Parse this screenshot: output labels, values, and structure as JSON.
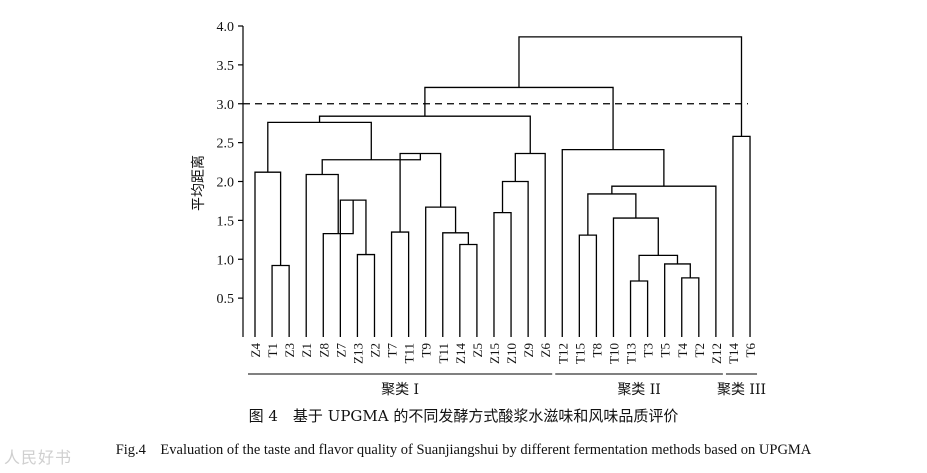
{
  "chart_data": {
    "type": "dendrogram",
    "ylabel": "平均距离",
    "ylim": [
      0,
      4.0
    ],
    "yticks": [
      "4.0",
      "3.5",
      "3.0",
      "2.5",
      "2.0",
      "1.5",
      "1.0",
      "0.5"
    ],
    "threshold": 3.0,
    "leaves": [
      "Z4",
      "T1",
      "Z3",
      "Z1",
      "Z8",
      "Z7",
      "Z13",
      "Z2",
      "T7",
      "T11",
      "T9",
      "T11",
      "Z14",
      "Z5",
      "Z15",
      "Z10",
      "Z9",
      "Z6",
      "T12",
      "T15",
      "T8",
      "T10",
      "T13",
      "T3",
      "T5",
      "T4",
      "T2",
      "Z12",
      "T14",
      "T6"
    ],
    "merges": [
      {
        "a": 1,
        "b": 2,
        "height": 0.92
      },
      {
        "a": 0,
        "b": "m0",
        "height": 2.12
      },
      {
        "a": 6,
        "b": 7,
        "height": 1.06
      },
      {
        "a": 5,
        "b": "m2",
        "height": 1.76
      },
      {
        "a": 4,
        "b": "m3",
        "height": 1.33
      },
      {
        "a": 3,
        "b": "m4",
        "height": 2.09
      },
      {
        "a": 8,
        "b": 9,
        "height": 1.35
      },
      {
        "a": 12,
        "b": 13,
        "height": 1.19
      },
      {
        "a": 11,
        "b": "m7",
        "height": 1.34
      },
      {
        "a": 10,
        "b": "m8",
        "height": 1.67
      },
      {
        "a": "m6",
        "b": "m9",
        "height": 2.36
      },
      {
        "a": "m5",
        "b": "m10",
        "height": 2.28
      },
      {
        "a": 14,
        "b": 15,
        "height": 1.6
      },
      {
        "a": "m12",
        "b": 16,
        "height": 2.0
      },
      {
        "a": "m13",
        "b": 17,
        "height": 2.36
      },
      {
        "a": "m1",
        "b": "m11",
        "height": 2.76
      },
      {
        "a": "m15",
        "b": "m14",
        "height": 2.84
      },
      {
        "a": 22,
        "b": 23,
        "height": 0.72
      },
      {
        "a": 25,
        "b": 26,
        "height": 0.76
      },
      {
        "a": 24,
        "b": "m18",
        "height": 0.94
      },
      {
        "a": "m17",
        "b": "m19",
        "height": 1.05
      },
      {
        "a": 21,
        "b": "m20",
        "height": 1.53
      },
      {
        "a": 19,
        "b": 20,
        "height": 1.31
      },
      {
        "a": "m22",
        "b": "m21",
        "height": 1.84
      },
      {
        "a": "m23",
        "b": 27,
        "height": 1.94
      },
      {
        "a": 18,
        "b": "m24",
        "height": 2.41
      },
      {
        "a": "m16",
        "b": "m25",
        "height": 3.21
      },
      {
        "a": 28,
        "b": 29,
        "height": 2.58
      },
      {
        "a": "m26",
        "b": "m27",
        "height": 3.86
      }
    ],
    "groups": [
      {
        "label": "聚类 I",
        "from": 0,
        "to": 17
      },
      {
        "label": "聚类 II",
        "from": 18,
        "to": 27
      },
      {
        "label": "聚类 III",
        "from": 28,
        "to": 29
      }
    ]
  },
  "caption": {
    "cn": "图 4　基于 UPGMA 的不同发酵方式酸浆水滋味和风味品质评价",
    "en": "Fig.4　Evaluation of the taste and flavor quality of Suanjiangshui by different fermentation methods based on UPGMA"
  },
  "watermark": "人民好书"
}
